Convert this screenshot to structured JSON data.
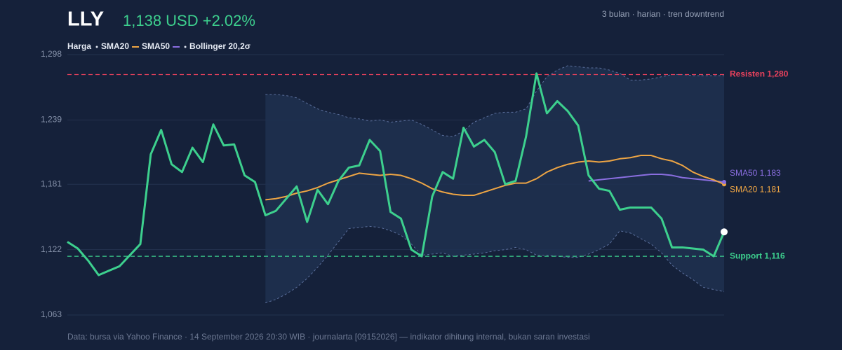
{
  "header": {
    "ticker": "LLY",
    "quote": "1,138 USD +2.02%",
    "subtitle": "3 bulan · harian · tren downtrend"
  },
  "chart_data": {
    "type": "line",
    "ylim": [
      1063,
      1298
    ],
    "yticks": [
      {
        "value": 1063,
        "label": "1,063"
      },
      {
        "value": 1122,
        "label": "1,122"
      },
      {
        "value": 1181,
        "label": "1,181"
      },
      {
        "value": 1239,
        "label": "1,239"
      },
      {
        "value": 1298,
        "label": "1,298"
      }
    ],
    "grid": true,
    "series": [
      {
        "name": "Harga",
        "color": "#3dd08e",
        "values": [
          1129,
          1123,
          1112,
          1099,
          1103,
          1107,
          1117,
          1127,
          1208,
          1230,
          1199,
          1192,
          1214,
          1201,
          1235,
          1216,
          1217,
          1189,
          1183,
          1153,
          1157,
          1168,
          1179,
          1147,
          1176,
          1163,
          1184,
          1196,
          1198,
          1221,
          1211,
          1156,
          1150,
          1122,
          1116,
          1170,
          1192,
          1186,
          1232,
          1215,
          1221,
          1210,
          1181,
          1184,
          1224,
          1281,
          1245,
          1256,
          1247,
          1234,
          1189,
          1177,
          1175,
          1158,
          1160,
          1160,
          1160,
          1150,
          1124,
          1124,
          1123,
          1122,
          1116,
          1138
        ]
      },
      {
        "name": "SMA20",
        "color": "#eea544",
        "end_label": "SMA20 1,181",
        "values": [
          null,
          null,
          null,
          null,
          null,
          null,
          null,
          null,
          null,
          null,
          null,
          null,
          null,
          null,
          null,
          null,
          null,
          null,
          null,
          1167,
          1168,
          1170,
          1173,
          1175,
          1178,
          1182,
          1185,
          1188,
          1191,
          1190,
          1189,
          1190,
          1189,
          1186,
          1182,
          1177,
          1174,
          1172,
          1171,
          1171,
          1174,
          1177,
          1180,
          1182,
          1182,
          1186,
          1192,
          1196,
          1199,
          1201,
          1202,
          1201,
          1202,
          1204,
          1205,
          1207,
          1207,
          1204,
          1202,
          1198,
          1192,
          1188,
          1185,
          1181
        ]
      },
      {
        "name": "SMA50",
        "color": "#8a6ee0",
        "end_label": "SMA50 1,183",
        "values": [
          null,
          null,
          null,
          null,
          null,
          null,
          null,
          null,
          null,
          null,
          null,
          null,
          null,
          null,
          null,
          null,
          null,
          null,
          null,
          null,
          null,
          null,
          null,
          null,
          null,
          null,
          null,
          null,
          null,
          null,
          null,
          null,
          null,
          null,
          null,
          null,
          null,
          null,
          null,
          null,
          null,
          null,
          null,
          null,
          null,
          null,
          null,
          null,
          null,
          null,
          1184,
          1185,
          1186,
          1187,
          1188,
          1189,
          1190,
          1190,
          1189,
          1187,
          1186,
          1185,
          1184,
          1183
        ]
      }
    ],
    "bands": {
      "name": "Bollinger 20,2σ",
      "color": "#5b6f9c",
      "upper": [
        null,
        null,
        null,
        null,
        null,
        null,
        null,
        null,
        null,
        null,
        null,
        null,
        null,
        null,
        null,
        null,
        null,
        null,
        null,
        1262,
        1262,
        1261,
        1259,
        1254,
        1249,
        1246,
        1244,
        1241,
        1240,
        1238,
        1239,
        1237,
        1238,
        1239,
        1235,
        1230,
        1225,
        1224,
        1229,
        1237,
        1241,
        1245,
        1246,
        1246,
        1249,
        1265,
        1278,
        1284,
        1288,
        1287,
        1286,
        1286,
        1284,
        1281,
        1275,
        1275,
        1276,
        1278,
        1280,
        1280,
        1279,
        1279,
        1279,
        1279
      ],
      "lower": [
        null,
        null,
        null,
        null,
        null,
        null,
        null,
        null,
        null,
        null,
        null,
        null,
        null,
        null,
        null,
        null,
        null,
        null,
        null,
        1074,
        1077,
        1082,
        1088,
        1096,
        1106,
        1117,
        1129,
        1141,
        1142,
        1143,
        1142,
        1139,
        1135,
        1127,
        1117,
        1118,
        1119,
        1116,
        1117,
        1118,
        1119,
        1121,
        1122,
        1124,
        1122,
        1117,
        1117,
        1116,
        1115,
        1115,
        1118,
        1122,
        1127,
        1139,
        1137,
        1132,
        1127,
        1119,
        1108,
        1101,
        1095,
        1088,
        1086,
        1084
      ]
    },
    "levels": [
      {
        "label": "Resisten 1,280",
        "value": 1280,
        "color": "#e8415c"
      },
      {
        "label": "Support 1,116",
        "value": 1116,
        "color": "#3dd08e"
      }
    ]
  },
  "footer": "Data: bursa via Yahoo Finance · 14 September 2026 20:30 WIB · journalarta [09152026] — indikator dihitung internal, bukan saran investasi"
}
